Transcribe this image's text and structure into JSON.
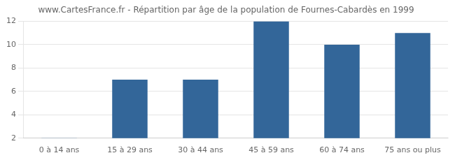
{
  "chart_data": {
    "type": "bar",
    "title": "www.CartesFrance.fr - Répartition par âge de la population de Fournes-Cabardès en 1999",
    "categories": [
      "0 à 14 ans",
      "15 à 29 ans",
      "30 à 44 ans",
      "45 à 59 ans",
      "60 à 74 ans",
      "75 ans ou plus"
    ],
    "values": [
      2,
      7,
      7,
      12,
      10,
      11
    ],
    "color": "#336699",
    "ylim": [
      2,
      12
    ],
    "yticks": [
      2,
      4,
      6,
      8,
      10,
      12
    ],
    "grid": true
  }
}
